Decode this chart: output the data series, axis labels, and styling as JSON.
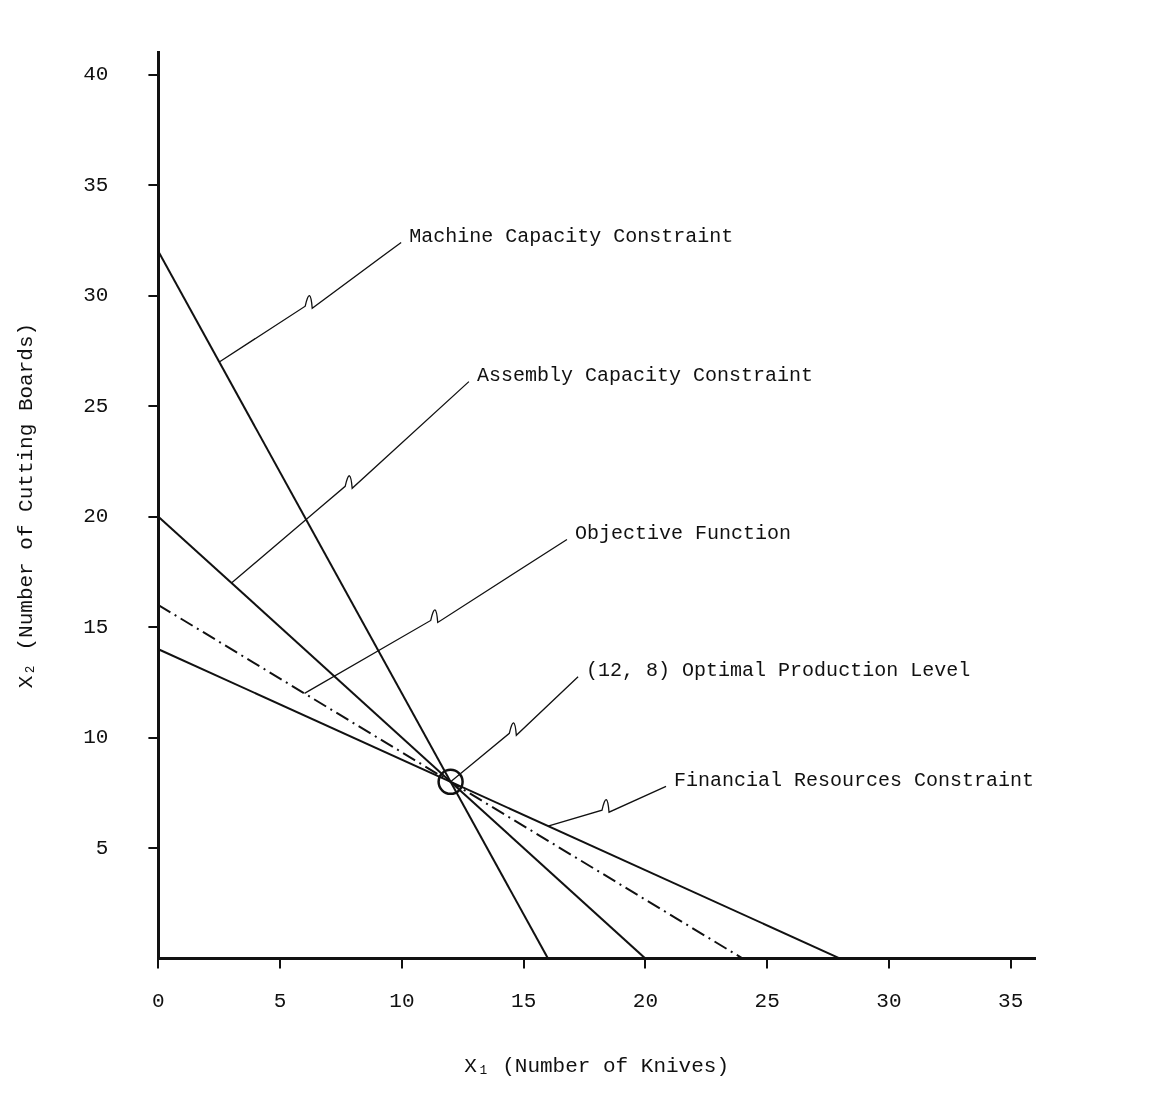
{
  "chart_data": {
    "type": "line",
    "xlabel": "X₁ (Number of Knives)",
    "ylabel": "X₂ (Number of Cutting Boards)",
    "xlim": [
      0,
      36
    ],
    "ylim": [
      0,
      41
    ],
    "xticks": [
      0,
      5,
      10,
      15,
      20,
      25,
      30,
      35
    ],
    "yticks": [
      5,
      10,
      15,
      20,
      25,
      30,
      35,
      40
    ],
    "series": [
      {
        "type": "line",
        "color": "#111111",
        "x": [
          0,
          16
        ],
        "values": [
          32,
          0
        ],
        "marker": "none",
        "line_style": "solid"
      },
      {
        "type": "line",
        "color": "#111111",
        "x": [
          0,
          20
        ],
        "values": [
          20,
          0
        ],
        "marker": "none",
        "line_style": "solid"
      },
      {
        "type": "line",
        "color": "#111111",
        "x": [
          0,
          24
        ],
        "values": [
          16,
          0
        ],
        "marker": "none",
        "line_style": "dashed"
      },
      {
        "type": "line",
        "color": "#111111",
        "x": [
          0,
          28
        ],
        "values": [
          14,
          0
        ],
        "marker": "none",
        "line_style": "solid"
      },
      {
        "type": "scatter",
        "color": "#111111",
        "x": [
          12
        ],
        "values": [
          8
        ],
        "marker": "circle"
      }
    ],
    "annotations": [
      {
        "text": "Machine Capacity Constraint",
        "x": 2.5,
        "y": 27
      },
      {
        "text": "Assembly Capacity Constraint",
        "x": 3,
        "y": 17
      },
      {
        "text": "Objective Function",
        "x": 6,
        "y": 12
      },
      {
        "text": "(12, 8) Optimal Production Level",
        "x": 12,
        "y": 8
      },
      {
        "text": "Financial Resources Constraint",
        "x": 16,
        "y": 6
      }
    ]
  }
}
